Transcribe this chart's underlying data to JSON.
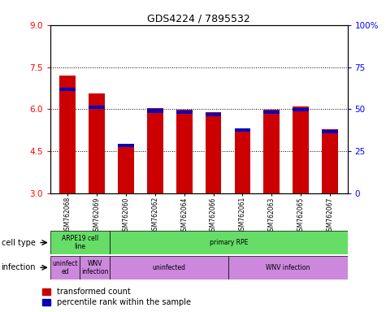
{
  "title": "GDS4224 / 7895532",
  "samples": [
    "GSM762068",
    "GSM762069",
    "GSM762060",
    "GSM762062",
    "GSM762064",
    "GSM762066",
    "GSM762061",
    "GSM762063",
    "GSM762065",
    "GSM762067"
  ],
  "red_values": [
    7.2,
    6.55,
    4.75,
    6.03,
    5.98,
    5.9,
    5.3,
    5.98,
    6.1,
    5.3
  ],
  "blue_top_values": [
    6.65,
    6.02,
    4.65,
    5.88,
    5.83,
    5.75,
    5.2,
    5.83,
    5.93,
    5.15
  ],
  "y_min": 3,
  "y_max": 9,
  "y_ticks_red": [
    3,
    4.5,
    6,
    7.5,
    9
  ],
  "y_ticks_blue": [
    0,
    25,
    50,
    75,
    100
  ],
  "bar_width": 0.55,
  "legend_red_label": "transformed count",
  "legend_blue_label": "percentile rank within the sample",
  "cell_type_label": "cell type",
  "infection_label": "infection",
  "bar_bottom": 3,
  "cell_rects": [
    {
      "start": 0,
      "end": 2,
      "label": "ARPE19 cell\nline",
      "color": "#66DD66"
    },
    {
      "start": 2,
      "end": 10,
      "label": "primary RPE",
      "color": "#66DD66"
    }
  ],
  "inf_rects": [
    {
      "start": 0,
      "end": 1,
      "label": "uninfect\ned",
      "color": "#CC88DD"
    },
    {
      "start": 1,
      "end": 2,
      "label": "WNV\ninfection",
      "color": "#CC88DD"
    },
    {
      "start": 2,
      "end": 6,
      "label": "uninfected",
      "color": "#CC88DD"
    },
    {
      "start": 6,
      "end": 10,
      "label": "WNV infection",
      "color": "#CC88DD"
    }
  ]
}
